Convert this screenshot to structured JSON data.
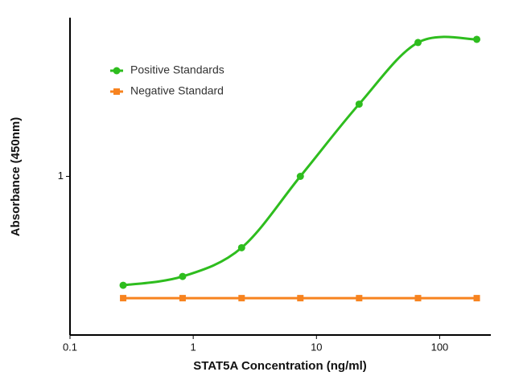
{
  "chart_data": {
    "type": "line",
    "xlabel": "STAT5A Concentration (ng/ml)",
    "ylabel": "Absorbance (450nm)",
    "x": [
      0.27,
      0.82,
      2.47,
      7.4,
      22.2,
      66.7,
      200
    ],
    "series": [
      {
        "name": "Positive Standards",
        "color": "#2ebd1e",
        "marker": "circle",
        "smooth": true,
        "values": [
          0.386,
          0.417,
          0.536,
          1.0,
          1.88,
          3.22,
          3.31
        ]
      },
      {
        "name": "Negative Standard",
        "color": "#f7831f",
        "marker": "square",
        "smooth": false,
        "values": [
          0.345,
          0.345,
          0.345,
          0.345,
          0.345,
          0.345,
          0.345
        ]
      }
    ],
    "xscale": "log",
    "yscale": "log",
    "xlim": [
      0.1,
      260
    ],
    "ylim": [
      0.25,
      4
    ],
    "xticks": [
      0.1,
      1,
      10,
      100
    ],
    "yticks": [
      1
    ],
    "grid": false,
    "legend": "upper left"
  }
}
